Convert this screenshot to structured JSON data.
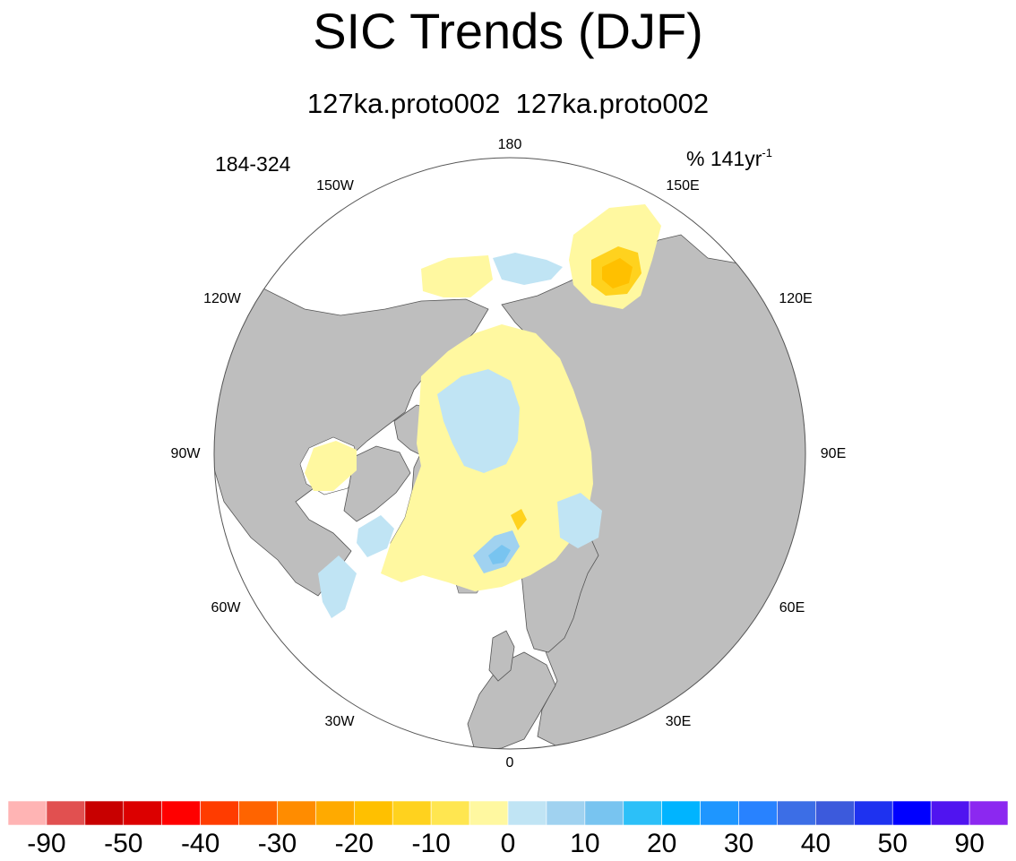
{
  "title": "SIC Trends (DJF)",
  "subtitle": "127ka.proto002  127ka.proto002",
  "years": "184-324",
  "units_base": "% 141yr",
  "units_exp": "-1",
  "map": {
    "projection": "north polar stereographic",
    "longitude_labels": [
      "180",
      "150E",
      "120E",
      "90E",
      "60E",
      "30E",
      "0",
      "30W",
      "60W",
      "90W",
      "120W",
      "150W"
    ]
  },
  "colorbar": {
    "tick_labels": [
      "-90",
      "-50",
      "-40",
      "-30",
      "-20",
      "-10",
      "0",
      "10",
      "20",
      "30",
      "40",
      "50",
      "90"
    ],
    "colors": [
      "#ffb4b4",
      "#e15050",
      "#c80000",
      "#dc0000",
      "#ff0000",
      "#ff3c00",
      "#ff6400",
      "#ff8c00",
      "#ffaa00",
      "#ffc000",
      "#ffd21e",
      "#ffe650",
      "#fff8a0",
      "#c0e4f4",
      "#a0d2f0",
      "#78c4f0",
      "#2cc0f8",
      "#00b4ff",
      "#1e96ff",
      "#2882ff",
      "#3c6ee6",
      "#3c5adc",
      "#1e32f0",
      "#0000ff",
      "#5014f0",
      "#8c28f0"
    ]
  },
  "colors": {
    "land": "#bebebe",
    "ocean": "#ffffff",
    "pale_yellow": "#fff8a0",
    "light_blue": "#c0e4f4"
  }
}
